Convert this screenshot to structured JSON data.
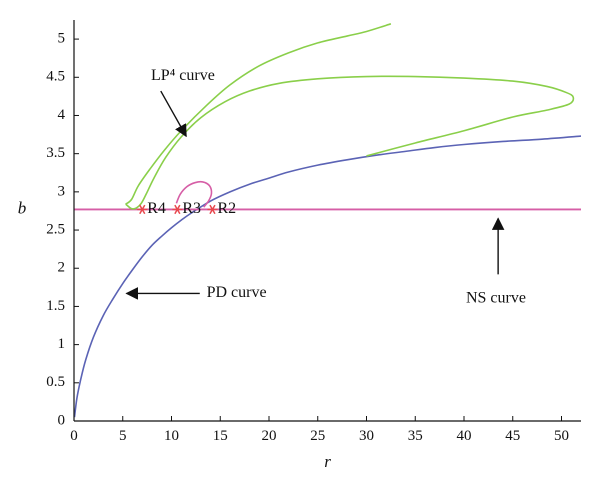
{
  "chart_data": {
    "type": "line",
    "xlabel": "r",
    "ylabel": "b",
    "xlim": [
      0,
      52
    ],
    "ylim": [
      0,
      5.25
    ],
    "xticks": [
      "0",
      "5",
      "10",
      "15",
      "20",
      "25",
      "30",
      "35",
      "40",
      "45",
      "50"
    ],
    "yticks": [
      "0",
      "0.5",
      "1",
      "1.5",
      "2",
      "2.5",
      "3",
      "3.5",
      "4",
      "4.5",
      "5"
    ],
    "grid": false,
    "colors": {
      "pd": "#5b63b5",
      "ns": "#d65ea6",
      "lp4": "#8acf4a",
      "point": "#e8484e"
    },
    "series": [
      {
        "key": "pd",
        "points": [
          [
            0.05,
            0.05
          ],
          [
            0.3,
            0.3
          ],
          [
            0.7,
            0.55
          ],
          [
            1.2,
            0.8
          ],
          [
            2,
            1.1
          ],
          [
            3,
            1.38
          ],
          [
            4,
            1.6
          ],
          [
            5,
            1.8
          ],
          [
            6,
            1.98
          ],
          [
            7,
            2.15
          ],
          [
            8,
            2.3
          ],
          [
            9,
            2.42
          ],
          [
            10,
            2.53
          ],
          [
            11,
            2.63
          ],
          [
            12,
            2.72
          ],
          [
            14,
            2.88
          ],
          [
            16,
            3.0
          ],
          [
            18,
            3.1
          ],
          [
            20,
            3.18
          ],
          [
            22,
            3.26
          ],
          [
            25,
            3.35
          ],
          [
            28,
            3.42
          ],
          [
            31,
            3.48
          ],
          [
            34,
            3.53
          ],
          [
            37,
            3.58
          ],
          [
            40,
            3.62
          ],
          [
            44,
            3.66
          ],
          [
            48,
            3.69
          ],
          [
            52,
            3.73
          ]
        ]
      },
      {
        "key": "ns",
        "points": [
          [
            0,
            2.77
          ],
          [
            52,
            2.77
          ]
        ]
      },
      {
        "key": "lp4_outer",
        "points": [
          [
            5.3,
            2.84
          ],
          [
            5.9,
            2.9
          ],
          [
            6.6,
            3.08
          ],
          [
            7.8,
            3.3
          ],
          [
            9.3,
            3.55
          ],
          [
            11,
            3.8
          ],
          [
            13.5,
            4.12
          ],
          [
            16,
            4.4
          ],
          [
            19,
            4.65
          ],
          [
            22,
            4.82
          ],
          [
            25,
            4.95
          ],
          [
            28,
            5.04
          ],
          [
            30,
            5.1
          ],
          [
            32.5,
            5.2
          ]
        ]
      },
      {
        "key": "lp4_main",
        "points": [
          [
            5.3,
            2.84
          ],
          [
            5.9,
            2.78
          ],
          [
            6.4,
            2.79
          ],
          [
            6.9,
            2.85
          ],
          [
            7.4,
            2.97
          ],
          [
            8.2,
            3.18
          ],
          [
            9.4,
            3.45
          ],
          [
            11,
            3.72
          ],
          [
            13,
            3.97
          ],
          [
            15.5,
            4.18
          ],
          [
            18,
            4.32
          ],
          [
            21,
            4.42
          ],
          [
            25,
            4.48
          ],
          [
            30,
            4.51
          ],
          [
            35,
            4.51
          ],
          [
            40,
            4.49
          ],
          [
            45,
            4.45
          ],
          [
            48.5,
            4.38
          ],
          [
            50.5,
            4.3
          ],
          [
            51.2,
            4.24
          ],
          [
            50.8,
            4.15
          ],
          [
            48.5,
            4.07
          ],
          [
            45,
            3.98
          ],
          [
            40,
            3.8
          ],
          [
            35,
            3.64
          ],
          [
            30,
            3.47
          ]
        ]
      },
      {
        "key": "small_loop",
        "points": [
          [
            10.5,
            2.85
          ],
          [
            10.9,
            2.97
          ],
          [
            11.6,
            3.07
          ],
          [
            12.4,
            3.12
          ],
          [
            13.2,
            3.13
          ],
          [
            13.9,
            3.08
          ],
          [
            14.1,
            2.98
          ],
          [
            13.8,
            2.88
          ],
          [
            13.3,
            2.8
          ]
        ]
      }
    ],
    "points": [
      {
        "label": "R4",
        "x": 7.0,
        "y": 2.77
      },
      {
        "label": "R3",
        "x": 10.6,
        "y": 2.77
      },
      {
        "label": "R2",
        "x": 14.2,
        "y": 2.77
      }
    ],
    "annotations": [
      {
        "text": "LP⁴ curve",
        "text_x": 7.9,
        "text_y": 4.51,
        "tip_x": 11.5,
        "tip_y": 3.73,
        "tail_x": 8.9,
        "tail_y": 4.32
      },
      {
        "text": "PD curve",
        "text_x": 13.6,
        "text_y": 1.67,
        "tip_x": 5.4,
        "tip_y": 1.67,
        "tail_x": 12.9,
        "tail_y": 1.67
      },
      {
        "text": "NS curve",
        "text_x": 40.2,
        "text_y": 1.6,
        "tip_x": 43.5,
        "tip_y": 2.65,
        "tail_x": 43.5,
        "tail_y": 1.92
      }
    ]
  }
}
